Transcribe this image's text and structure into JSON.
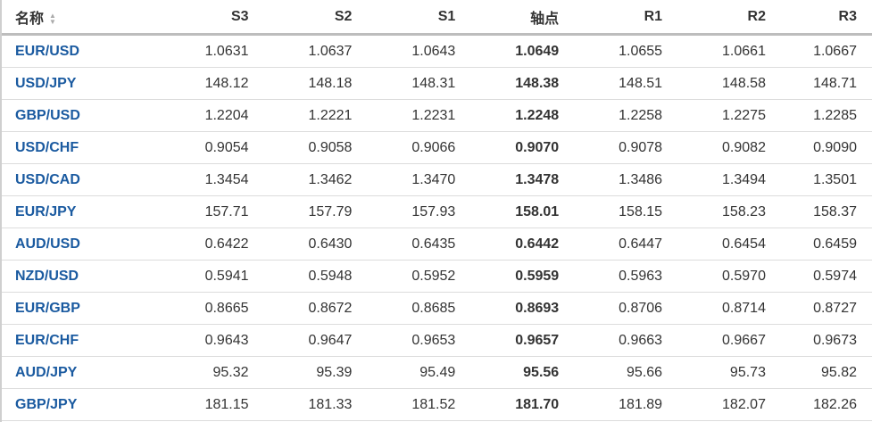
{
  "headers": {
    "name": "名称",
    "cols": [
      "S3",
      "S2",
      "S1",
      "轴点",
      "R1",
      "R2",
      "R3"
    ]
  },
  "rows": [
    {
      "name": "EUR/USD",
      "values": [
        "1.0631",
        "1.0637",
        "1.0643",
        "1.0649",
        "1.0655",
        "1.0661",
        "1.0667"
      ]
    },
    {
      "name": "USD/JPY",
      "values": [
        "148.12",
        "148.18",
        "148.31",
        "148.38",
        "148.51",
        "148.58",
        "148.71"
      ]
    },
    {
      "name": "GBP/USD",
      "values": [
        "1.2204",
        "1.2221",
        "1.2231",
        "1.2248",
        "1.2258",
        "1.2275",
        "1.2285"
      ]
    },
    {
      "name": "USD/CHF",
      "values": [
        "0.9054",
        "0.9058",
        "0.9066",
        "0.9070",
        "0.9078",
        "0.9082",
        "0.9090"
      ]
    },
    {
      "name": "USD/CAD",
      "values": [
        "1.3454",
        "1.3462",
        "1.3470",
        "1.3478",
        "1.3486",
        "1.3494",
        "1.3501"
      ]
    },
    {
      "name": "EUR/JPY",
      "values": [
        "157.71",
        "157.79",
        "157.93",
        "158.01",
        "158.15",
        "158.23",
        "158.37"
      ]
    },
    {
      "name": "AUD/USD",
      "values": [
        "0.6422",
        "0.6430",
        "0.6435",
        "0.6442",
        "0.6447",
        "0.6454",
        "0.6459"
      ]
    },
    {
      "name": "NZD/USD",
      "values": [
        "0.5941",
        "0.5948",
        "0.5952",
        "0.5959",
        "0.5963",
        "0.5970",
        "0.5974"
      ]
    },
    {
      "name": "EUR/GBP",
      "values": [
        "0.8665",
        "0.8672",
        "0.8685",
        "0.8693",
        "0.8706",
        "0.8714",
        "0.8727"
      ]
    },
    {
      "name": "EUR/CHF",
      "values": [
        "0.9643",
        "0.9647",
        "0.9653",
        "0.9657",
        "0.9663",
        "0.9667",
        "0.9673"
      ]
    },
    {
      "name": "AUD/JPY",
      "values": [
        "95.32",
        "95.39",
        "95.49",
        "95.56",
        "95.66",
        "95.73",
        "95.82"
      ]
    },
    {
      "name": "GBP/JPY",
      "values": [
        "181.15",
        "181.33",
        "181.52",
        "181.70",
        "181.89",
        "182.07",
        "182.26"
      ]
    }
  ],
  "colors": {
    "link": "#1a5aa0",
    "text": "#333333",
    "header_border": "#bdbdbd"
  },
  "icons": {
    "sort": "sort-arrows-icon"
  }
}
